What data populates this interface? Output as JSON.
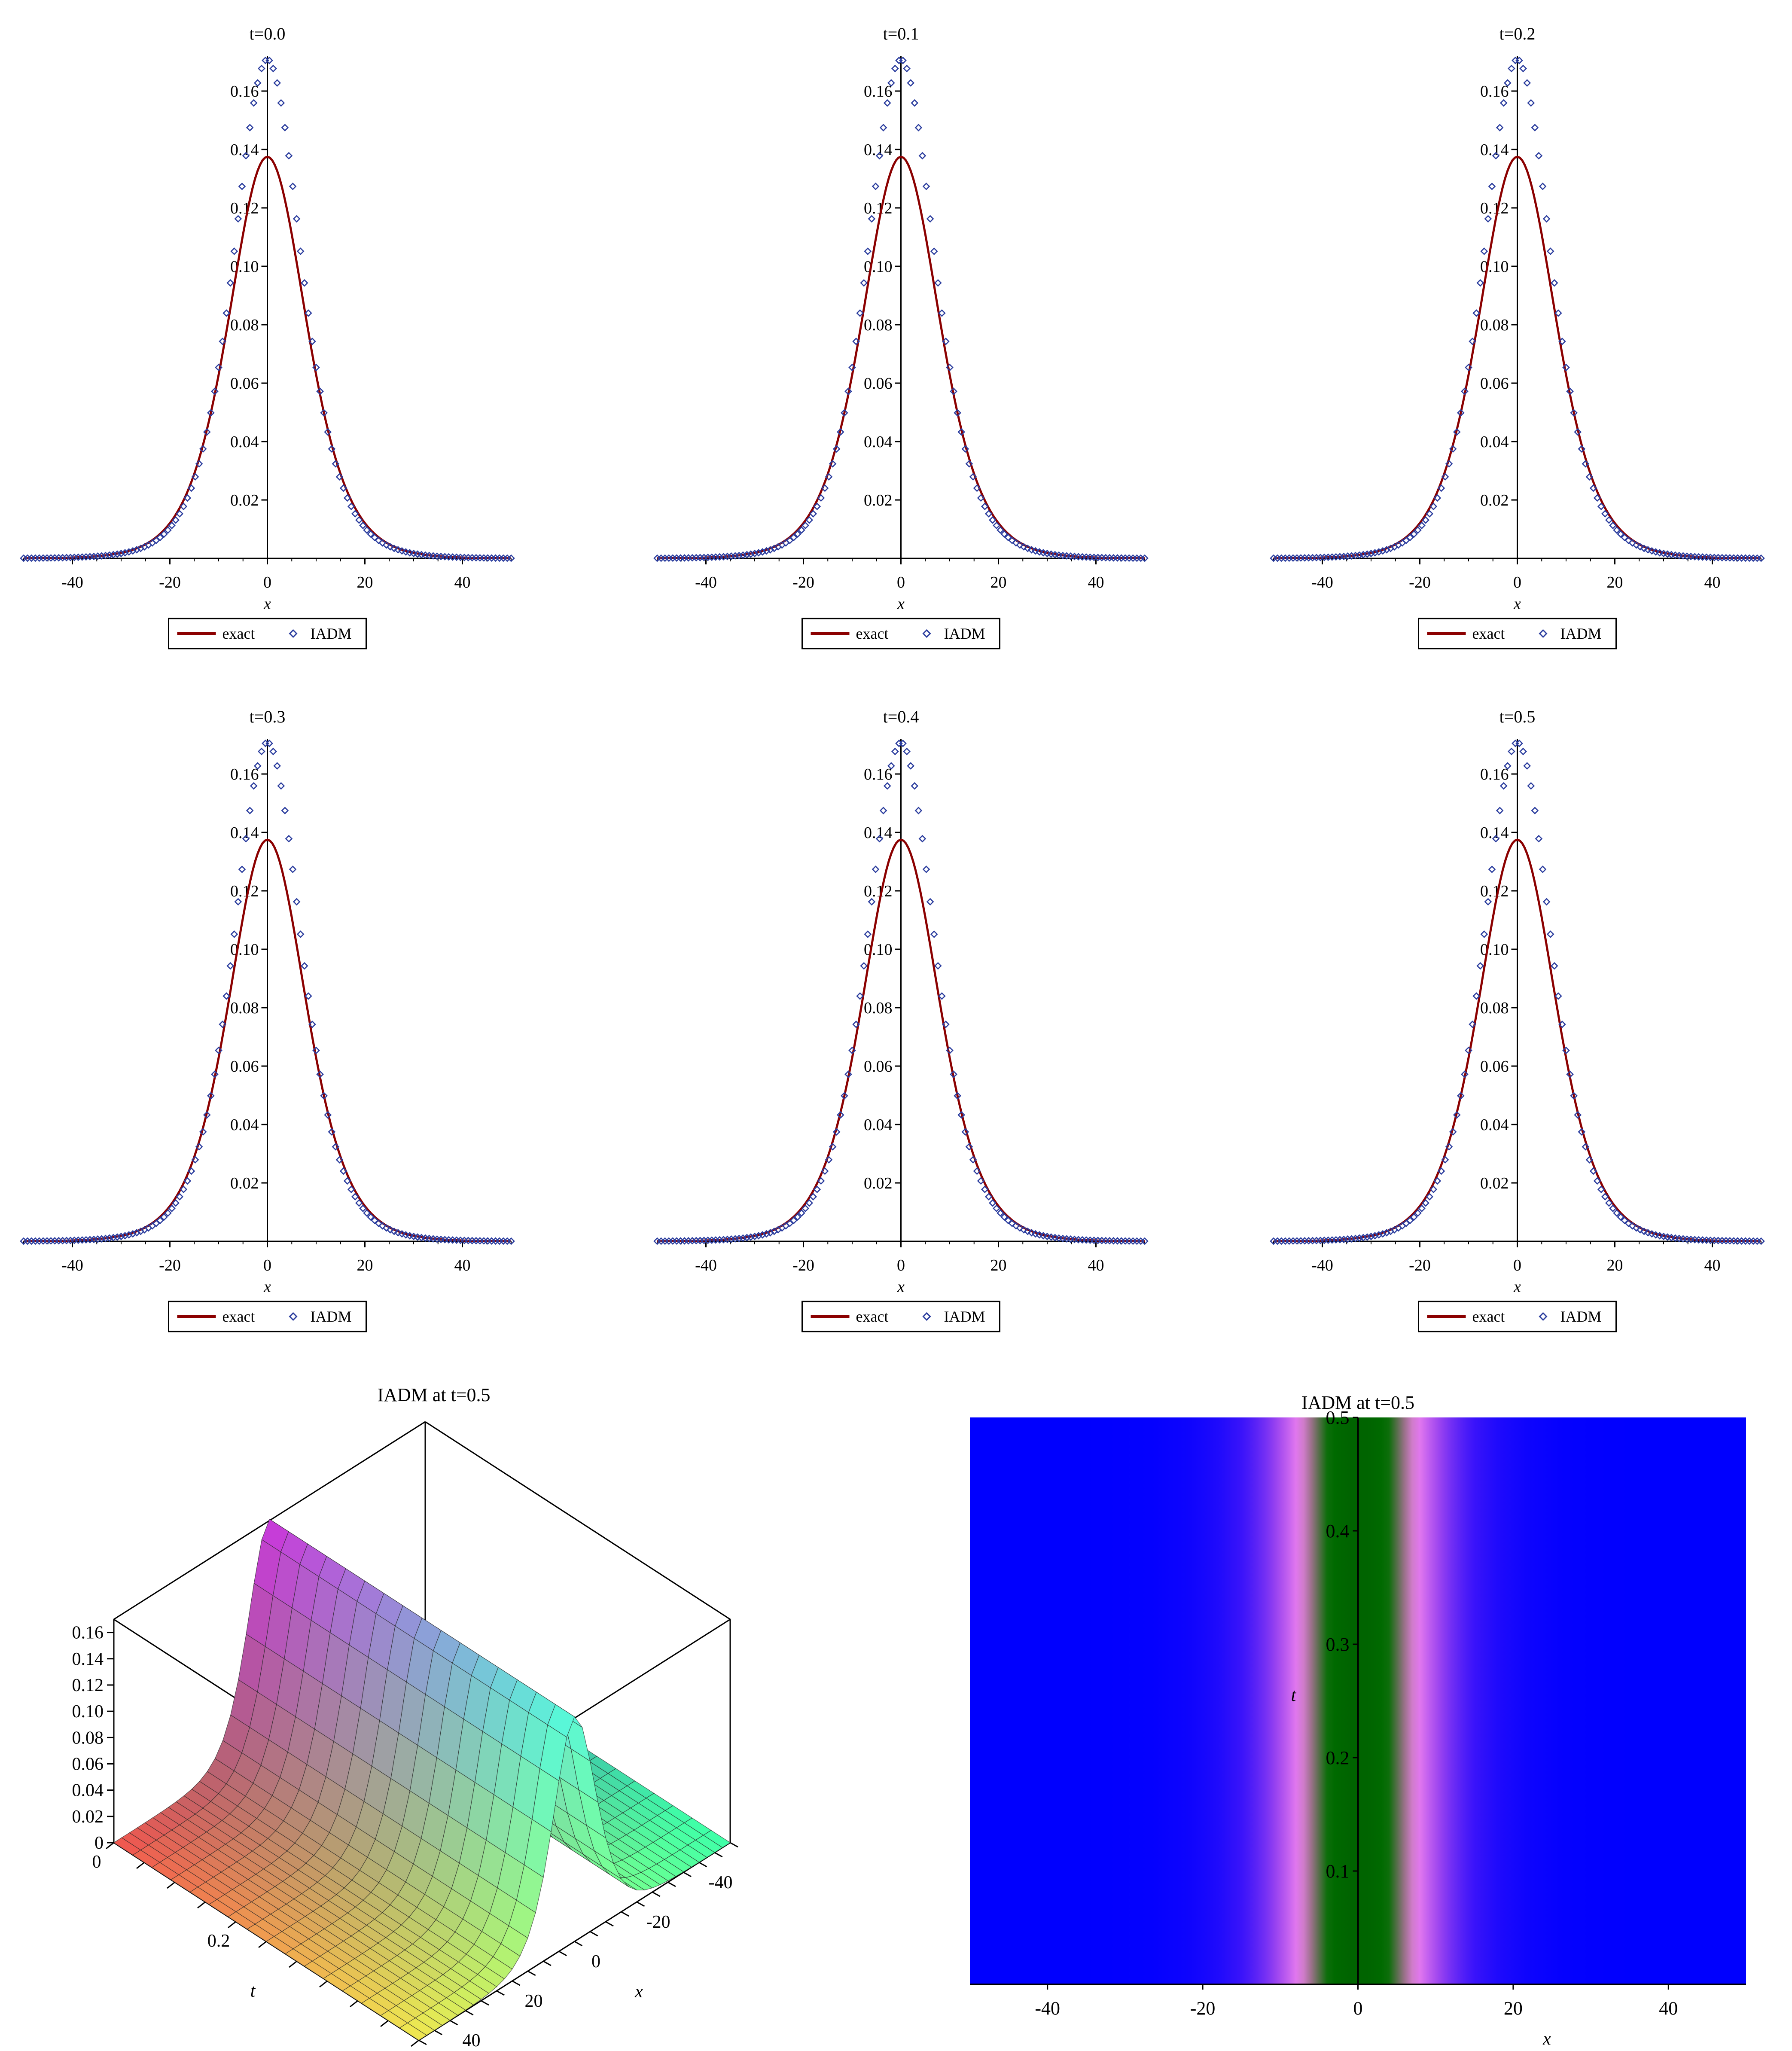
{
  "colors": {
    "exact": "#8b0000",
    "iadm": "#2b3d9e",
    "axis": "#000000",
    "density_far": "#0000ff",
    "density_mid": "#8a2be2",
    "density_pink": "#ee82ee",
    "density_core": "#006400"
  },
  "legend": {
    "exact_label": "exact",
    "iadm_label": "IADM"
  },
  "chart_data": [
    {
      "id": "t00",
      "type": "line",
      "title": "t=0.0",
      "xlabel": "x",
      "ylabel": "",
      "xlim": [
        -50,
        50
      ],
      "ylim": [
        0,
        0.175
      ],
      "xticks": [
        -40,
        -20,
        0,
        20,
        40
      ],
      "yticks": [
        0.02,
        0.04,
        0.06,
        0.08,
        0.1,
        0.12,
        0.14,
        0.16
      ],
      "series": [
        {
          "name": "exact",
          "style": "line",
          "x": [
            -50,
            -45,
            -40,
            -35,
            -30,
            -25,
            -20,
            -15,
            -10,
            -5,
            0,
            5,
            10,
            15,
            20,
            25,
            30,
            35,
            40,
            45,
            50
          ],
          "y": [
            0.0002,
            0.0005,
            0.0011,
            0.0025,
            0.0056,
            0.0123,
            0.0259,
            0.0505,
            0.0849,
            0.1189,
            0.1375,
            0.1189,
            0.0849,
            0.0505,
            0.0259,
            0.0123,
            0.0056,
            0.0025,
            0.0011,
            0.0005,
            0.0002
          ]
        },
        {
          "name": "IADM",
          "style": "markers",
          "x": [
            -50,
            -45,
            -40,
            -35,
            -30,
            -25,
            -20,
            -15,
            -10,
            -5,
            0,
            5,
            10,
            15,
            20,
            25,
            30,
            35,
            40,
            45,
            50
          ],
          "y": [
            0.0007,
            0.0015,
            0.003,
            0.0055,
            0.0097,
            0.017,
            0.0295,
            0.0505,
            0.085,
            0.1349,
            0.171,
            0.1349,
            0.085,
            0.0505,
            0.0295,
            0.017,
            0.0097,
            0.0055,
            0.003,
            0.0015,
            0.0007
          ]
        }
      ]
    },
    {
      "id": "t01",
      "type": "line",
      "title": "t=0.1",
      "xlabel": "x",
      "ylabel": "",
      "xlim": [
        -50,
        50
      ],
      "ylim": [
        0,
        0.175
      ],
      "xticks": [
        -40,
        -20,
        0,
        20,
        40
      ],
      "yticks": [
        0.02,
        0.04,
        0.06,
        0.08,
        0.1,
        0.12,
        0.14,
        0.16
      ],
      "series": [
        {
          "name": "exact",
          "style": "line",
          "x": [
            -50,
            -45,
            -40,
            -35,
            -30,
            -25,
            -20,
            -15,
            -10,
            -5,
            0,
            5,
            10,
            15,
            20,
            25,
            30,
            35,
            40,
            45,
            50
          ],
          "y": [
            0.0002,
            0.0005,
            0.0011,
            0.0025,
            0.0056,
            0.0123,
            0.0259,
            0.0505,
            0.0849,
            0.1189,
            0.1375,
            0.1189,
            0.0849,
            0.0505,
            0.0259,
            0.0123,
            0.0056,
            0.0025,
            0.0011,
            0.0005,
            0.0002
          ]
        },
        {
          "name": "IADM",
          "style": "markers",
          "x": [
            -50,
            -45,
            -40,
            -35,
            -30,
            -25,
            -20,
            -15,
            -10,
            -5,
            0,
            5,
            10,
            15,
            20,
            25,
            30,
            35,
            40,
            45,
            50
          ],
          "y": [
            0.0007,
            0.0015,
            0.003,
            0.0055,
            0.0097,
            0.017,
            0.0295,
            0.0505,
            0.085,
            0.1349,
            0.171,
            0.1349,
            0.085,
            0.0505,
            0.0295,
            0.017,
            0.0097,
            0.0055,
            0.003,
            0.0015,
            0.0007
          ]
        }
      ]
    },
    {
      "id": "t02",
      "type": "line",
      "title": "t=0.2",
      "xlabel": "x",
      "ylabel": "",
      "xlim": [
        -50,
        50
      ],
      "ylim": [
        0,
        0.175
      ],
      "xticks": [
        -40,
        -20,
        0,
        20,
        40
      ],
      "yticks": [
        0.02,
        0.04,
        0.06,
        0.08,
        0.1,
        0.12,
        0.14,
        0.16
      ],
      "series": [
        {
          "name": "exact",
          "style": "line",
          "x": [
            -50,
            -45,
            -40,
            -35,
            -30,
            -25,
            -20,
            -15,
            -10,
            -5,
            0,
            5,
            10,
            15,
            20,
            25,
            30,
            35,
            40,
            45,
            50
          ],
          "y": [
            0.0002,
            0.0005,
            0.0011,
            0.0025,
            0.0056,
            0.0123,
            0.0259,
            0.0505,
            0.0849,
            0.1189,
            0.1375,
            0.1189,
            0.0849,
            0.0505,
            0.0259,
            0.0123,
            0.0056,
            0.0025,
            0.0011,
            0.0005,
            0.0002
          ]
        },
        {
          "name": "IADM",
          "style": "markers",
          "x": [
            -50,
            -45,
            -40,
            -35,
            -30,
            -25,
            -20,
            -15,
            -10,
            -5,
            0,
            5,
            10,
            15,
            20,
            25,
            30,
            35,
            40,
            45,
            50
          ],
          "y": [
            0.0007,
            0.0015,
            0.003,
            0.0055,
            0.0097,
            0.017,
            0.0295,
            0.0505,
            0.085,
            0.1349,
            0.171,
            0.1349,
            0.085,
            0.0505,
            0.0295,
            0.017,
            0.0097,
            0.0055,
            0.003,
            0.0015,
            0.0007
          ]
        }
      ]
    },
    {
      "id": "t03",
      "type": "line",
      "title": "t=0.3",
      "xlabel": "x",
      "ylabel": "",
      "xlim": [
        -50,
        50
      ],
      "ylim": [
        0,
        0.175
      ],
      "xticks": [
        -40,
        -20,
        0,
        20,
        40
      ],
      "yticks": [
        0.02,
        0.04,
        0.06,
        0.08,
        0.1,
        0.12,
        0.14,
        0.16
      ],
      "series": [
        {
          "name": "exact",
          "style": "line",
          "x": [
            -50,
            -45,
            -40,
            -35,
            -30,
            -25,
            -20,
            -15,
            -10,
            -5,
            0,
            5,
            10,
            15,
            20,
            25,
            30,
            35,
            40,
            45,
            50
          ],
          "y": [
            0.0002,
            0.0005,
            0.0011,
            0.0025,
            0.0056,
            0.0123,
            0.0259,
            0.0505,
            0.0849,
            0.1189,
            0.1375,
            0.1189,
            0.0849,
            0.0505,
            0.0259,
            0.0123,
            0.0056,
            0.0025,
            0.0011,
            0.0005,
            0.0002
          ]
        },
        {
          "name": "IADM",
          "style": "markers",
          "x": [
            -50,
            -45,
            -40,
            -35,
            -30,
            -25,
            -20,
            -15,
            -10,
            -5,
            0,
            5,
            10,
            15,
            20,
            25,
            30,
            35,
            40,
            45,
            50
          ],
          "y": [
            0.0007,
            0.0015,
            0.003,
            0.0055,
            0.0097,
            0.017,
            0.0295,
            0.0505,
            0.085,
            0.1349,
            0.171,
            0.1349,
            0.085,
            0.0505,
            0.0295,
            0.017,
            0.0097,
            0.0055,
            0.003,
            0.0015,
            0.0007
          ]
        }
      ]
    },
    {
      "id": "t04",
      "type": "line",
      "title": "t=0.4",
      "xlabel": "x",
      "ylabel": "",
      "xlim": [
        -50,
        50
      ],
      "ylim": [
        0,
        0.175
      ],
      "xticks": [
        -40,
        -20,
        0,
        20,
        40
      ],
      "yticks": [
        0.02,
        0.04,
        0.06,
        0.08,
        0.1,
        0.12,
        0.14,
        0.16
      ],
      "series": [
        {
          "name": "exact",
          "style": "line",
          "x": [
            -50,
            -45,
            -40,
            -35,
            -30,
            -25,
            -20,
            -15,
            -10,
            -5,
            0,
            5,
            10,
            15,
            20,
            25,
            30,
            35,
            40,
            45,
            50
          ],
          "y": [
            0.0002,
            0.0005,
            0.0011,
            0.0025,
            0.0056,
            0.0123,
            0.0259,
            0.0505,
            0.0849,
            0.1189,
            0.1375,
            0.1189,
            0.0849,
            0.0505,
            0.0259,
            0.0123,
            0.0056,
            0.0025,
            0.0011,
            0.0005,
            0.0002
          ]
        },
        {
          "name": "IADM",
          "style": "markers",
          "x": [
            -50,
            -45,
            -40,
            -35,
            -30,
            -25,
            -20,
            -15,
            -10,
            -5,
            0,
            5,
            10,
            15,
            20,
            25,
            30,
            35,
            40,
            45,
            50
          ],
          "y": [
            0.0007,
            0.0015,
            0.003,
            0.0055,
            0.0097,
            0.017,
            0.0295,
            0.0505,
            0.085,
            0.1349,
            0.171,
            0.1349,
            0.085,
            0.0505,
            0.0295,
            0.017,
            0.0097,
            0.0055,
            0.003,
            0.0015,
            0.0007
          ]
        }
      ]
    },
    {
      "id": "t05",
      "type": "line",
      "title": "t=0.5",
      "xlabel": "x",
      "ylabel": "",
      "xlim": [
        -50,
        50
      ],
      "ylim": [
        0,
        0.175
      ],
      "xticks": [
        -40,
        -20,
        0,
        20,
        40
      ],
      "yticks": [
        0.02,
        0.04,
        0.06,
        0.08,
        0.1,
        0.12,
        0.14,
        0.16
      ],
      "series": [
        {
          "name": "exact",
          "style": "line",
          "x": [
            -50,
            -45,
            -40,
            -35,
            -30,
            -25,
            -20,
            -15,
            -10,
            -5,
            0,
            5,
            10,
            15,
            20,
            25,
            30,
            35,
            40,
            45,
            50
          ],
          "y": [
            0.0002,
            0.0005,
            0.0011,
            0.0025,
            0.0056,
            0.0123,
            0.0259,
            0.0505,
            0.0849,
            0.1189,
            0.1375,
            0.1189,
            0.0849,
            0.0505,
            0.0259,
            0.0123,
            0.0056,
            0.0025,
            0.0011,
            0.0005,
            0.0002
          ]
        },
        {
          "name": "IADM",
          "style": "markers",
          "x": [
            -50,
            -45,
            -40,
            -35,
            -30,
            -25,
            -20,
            -15,
            -10,
            -5,
            0,
            5,
            10,
            15,
            20,
            25,
            30,
            35,
            40,
            45,
            50
          ],
          "y": [
            0.0007,
            0.0015,
            0.003,
            0.0055,
            0.0097,
            0.017,
            0.0295,
            0.0505,
            0.085,
            0.1349,
            0.171,
            0.1349,
            0.085,
            0.0505,
            0.0295,
            0.017,
            0.0097,
            0.0055,
            0.003,
            0.0015,
            0.0007
          ]
        }
      ]
    },
    {
      "id": "surface",
      "type": "area",
      "title": "IADM at t=0.5",
      "xlabel": "x",
      "ylabel": "t",
      "zlabel": "",
      "xlim": [
        -50,
        50
      ],
      "tlim": [
        0,
        0.5
      ],
      "zlim": [
        0,
        0.17
      ],
      "zticks": [
        "0",
        "0.02",
        "0.04",
        "0.06",
        "0.08",
        "0.10",
        "0.12",
        "0.14",
        "0.16"
      ],
      "tticks": [
        "0",
        "0.2"
      ],
      "xticks": [
        "-40",
        "-20",
        "0",
        "20",
        "40"
      ],
      "profile_peak": 0.171,
      "view": "3d-box"
    },
    {
      "id": "density",
      "type": "heatmap",
      "title": "IADM at t=0.5",
      "xlabel": "x",
      "ylabel": "t",
      "xlim": [
        -50,
        50
      ],
      "ylim": [
        0,
        0.5
      ],
      "xticks": [
        -40,
        -20,
        0,
        20,
        40
      ],
      "yticks": [
        0.1,
        0.2,
        0.3,
        0.4,
        0.5
      ],
      "peak": 0.171
    }
  ]
}
